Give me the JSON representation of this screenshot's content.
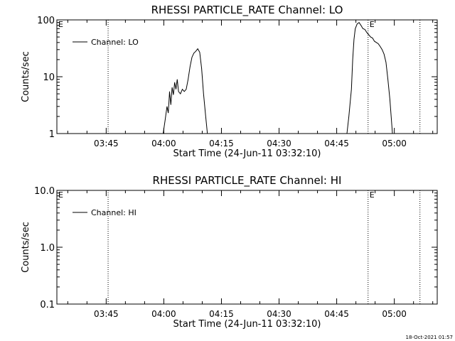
{
  "footer": {
    "timestamp": "18-Oct-2021 01:57"
  },
  "chart_data": [
    {
      "type": "line",
      "title": "RHESSI PARTICLE_RATE Channel: LO",
      "xlabel": "Start Time (24-Jun-11 03:32:10)",
      "ylabel": "Counts/sec",
      "y_scale": "log",
      "xlim": [
        "03:32:10",
        "05:11:10"
      ],
      "ylim": [
        1,
        100
      ],
      "x_ticks": [
        "03:45",
        "04:00",
        "04:15",
        "04:30",
        "04:45",
        "05:00"
      ],
      "y_ticks": [
        "1",
        "10",
        "100"
      ],
      "legend": {
        "position": "top-left",
        "entries": [
          "Channel: LO"
        ]
      },
      "markers": [
        {
          "label": "E",
          "x": "03:32:10"
        },
        {
          "label": "E",
          "x": "04:53:10"
        }
      ],
      "vlines": [
        "03:45:30",
        "04:53:10",
        "05:06:40"
      ],
      "series": [
        {
          "name": "Channel: LO",
          "segments": [
            {
              "x": [
                "03:59:50",
                "04:00:20",
                "04:00:50",
                "04:01:10",
                "04:01:30",
                "04:01:50",
                "04:02:10",
                "04:02:30",
                "04:02:50",
                "04:03:10",
                "04:03:30",
                "04:03:50",
                "04:04:20",
                "04:04:50",
                "04:05:20",
                "04:05:50",
                "04:06:20",
                "04:06:50",
                "04:07:20",
                "04:07:50",
                "04:08:20",
                "04:08:50",
                "04:09:20",
                "04:09:50",
                "04:10:20",
                "04:10:50",
                "04:11:20"
              ],
              "y": [
                1.0,
                1.7,
                3.0,
                2.3,
                5.5,
                3.2,
                6.5,
                4.8,
                8.0,
                6.0,
                9.0,
                5.5,
                5.0,
                6.0,
                5.5,
                6.0,
                9.0,
                15.0,
                22.0,
                26.0,
                28.0,
                31.0,
                27.0,
                14.0,
                5.0,
                2.2,
                1.0
              ]
            },
            {
              "x": [
                "04:47:40",
                "04:48:10",
                "04:48:30",
                "04:48:50",
                "04:49:10",
                "04:49:30",
                "04:49:50",
                "04:50:20",
                "04:50:50",
                "04:51:20",
                "04:51:50",
                "04:52:20",
                "04:52:50",
                "04:53:20",
                "04:53:50",
                "04:54:20",
                "04:54:50",
                "04:55:20",
                "04:55:50",
                "04:56:20",
                "04:56:50",
                "04:57:20",
                "04:57:50",
                "04:58:20",
                "04:58:50",
                "04:59:10",
                "04:59:30"
              ],
              "y": [
                1.0,
                2.0,
                3.5,
                6.0,
                20.0,
                45.0,
                70.0,
                85.0,
                90.0,
                80.0,
                70.0,
                68.0,
                60.0,
                55.0,
                50.0,
                48.0,
                42.0,
                40.0,
                38.0,
                34.0,
                30.0,
                25.0,
                18.0,
                9.0,
                4.0,
                2.0,
                1.0
              ]
            }
          ]
        }
      ]
    },
    {
      "type": "line",
      "title": "RHESSI PARTICLE_RATE Channel: HI",
      "xlabel": "Start Time (24-Jun-11 03:32:10)",
      "ylabel": "Counts/sec",
      "y_scale": "log",
      "xlim": [
        "03:32:10",
        "05:11:10"
      ],
      "ylim": [
        0.1,
        10.0
      ],
      "x_ticks": [
        "03:45",
        "04:00",
        "04:15",
        "04:30",
        "04:45",
        "05:00"
      ],
      "y_ticks": [
        "0.1",
        "1.0",
        "10.0"
      ],
      "legend": {
        "position": "top-left",
        "entries": [
          "Channel: HI"
        ]
      },
      "markers": [
        {
          "label": "E",
          "x": "03:32:10"
        },
        {
          "label": "E",
          "x": "04:53:10"
        }
      ],
      "vlines": [
        "03:45:30",
        "04:53:10",
        "05:06:40"
      ],
      "series": [
        {
          "name": "Channel: HI",
          "segments": []
        }
      ]
    }
  ]
}
